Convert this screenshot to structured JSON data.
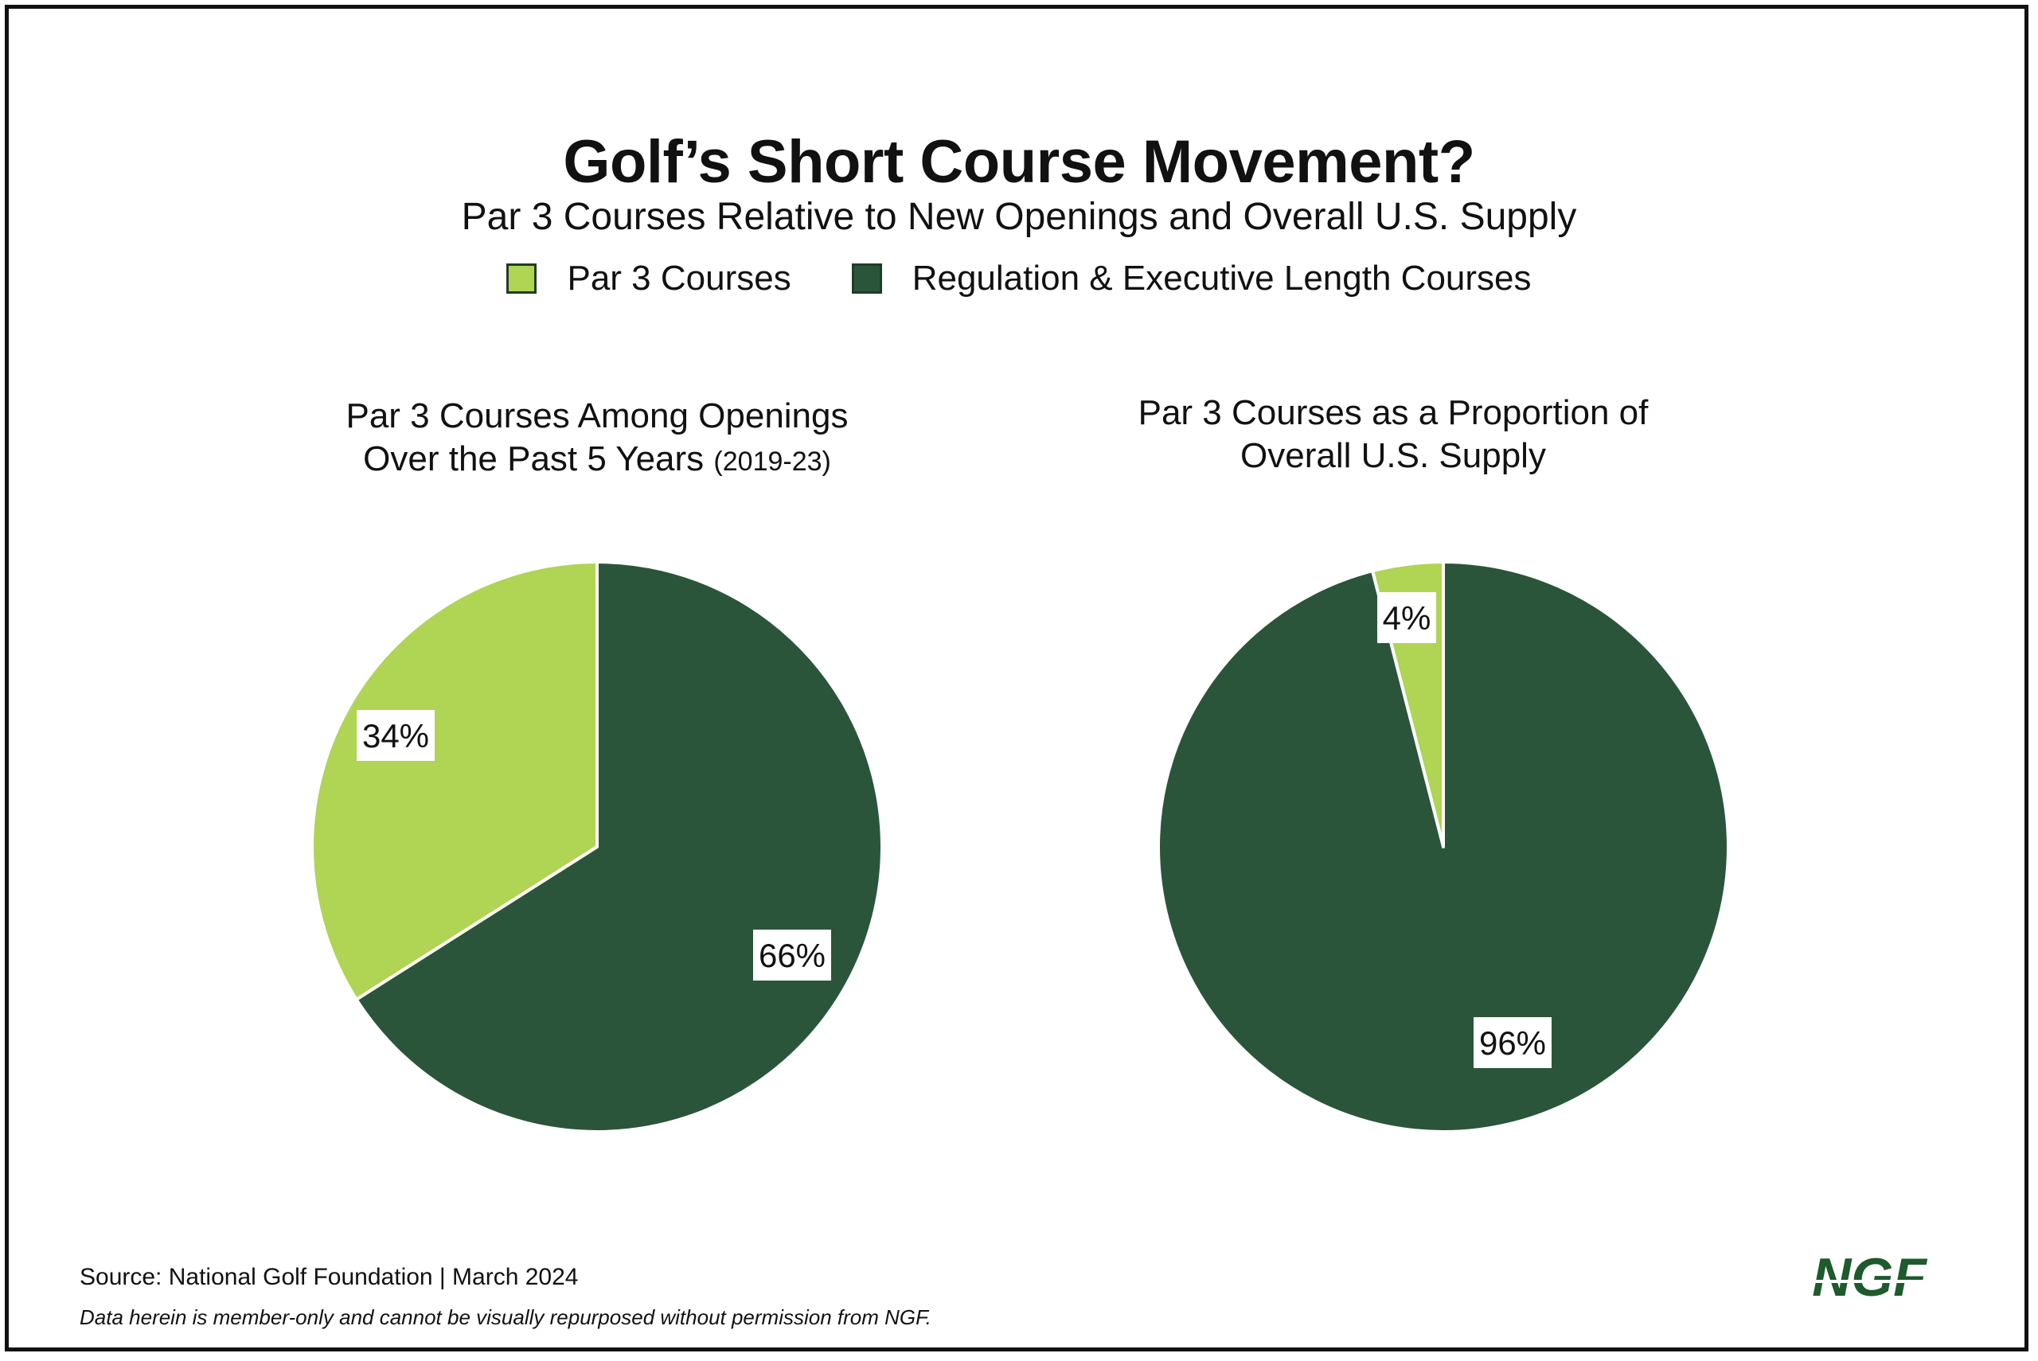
{
  "header": {
    "title": "Golf’s Short Course Movement?",
    "subtitle": "Par 3 Courses Relative to New Openings and Overall U.S. Supply"
  },
  "legend": [
    {
      "label": "Par 3 Courses",
      "color": "#b0d454"
    },
    {
      "label": "Regulation & Executive Length Courses",
      "color": "#2b553a"
    }
  ],
  "chart_data": [
    {
      "type": "pie",
      "title": "Par 3 Courses Among Openings",
      "title_line2": "Over the Past 5 Years",
      "title_note": "(2019-23)",
      "slices": [
        {
          "label": "Par 3 Courses",
          "value": 34,
          "display": "34%",
          "color": "#b0d454"
        },
        {
          "label": "Regulation & Executive Length Courses",
          "value": 66,
          "display": "66%",
          "color": "#2b553a"
        }
      ]
    },
    {
      "type": "pie",
      "title": "Par 3 Courses as a Proportion of",
      "title_line2": "Overall U.S. Supply",
      "title_note": "",
      "slices": [
        {
          "label": "Par 3 Courses",
          "value": 4,
          "display": "4%",
          "color": "#b0d454"
        },
        {
          "label": "Regulation & Executive Length Courses",
          "value": 96,
          "display": "96%",
          "color": "#2b553a"
        }
      ]
    }
  ],
  "footer": {
    "source": "Source: National Golf Foundation | March 2024",
    "note": "Data herein is member-only and cannot be visually repurposed without permission from NGF."
  },
  "logo": {
    "text": "NGF",
    "color": "#1e5a2c"
  }
}
